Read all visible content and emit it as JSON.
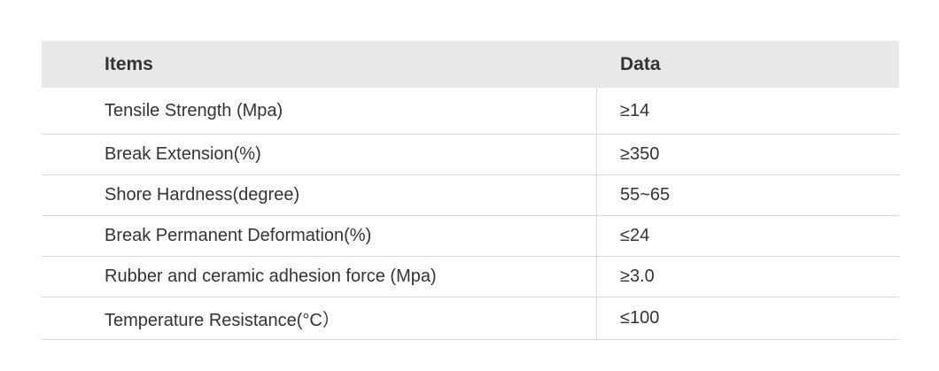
{
  "table": {
    "headers": [
      "Items",
      "Data"
    ],
    "rows": [
      {
        "item": "Tensile Strength  (Mpa)",
        "data": "≥14"
      },
      {
        "item": "Break Extension(%)",
        "data": "≥350"
      },
      {
        "item": "Shore Hardness(degree)",
        "data": "55~65"
      },
      {
        "item": "Break Permanent Deformation(%)",
        "data": "≤24"
      },
      {
        "item": "Rubber and ceramic adhesion force (Mpa)",
        "data": "≥3.0"
      },
      {
        "item": "Temperature Resistance(°C）",
        "data": "≤100"
      }
    ]
  }
}
